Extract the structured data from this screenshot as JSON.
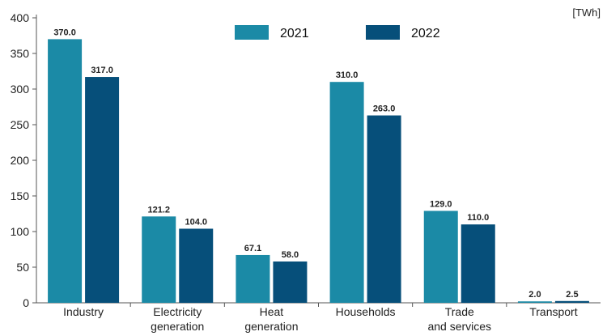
{
  "chart_data": {
    "type": "bar",
    "unit_label": "[TWh]",
    "categories": [
      [
        "Industry"
      ],
      [
        "Electricity",
        "generation"
      ],
      [
        "Heat",
        "generation"
      ],
      [
        "Households"
      ],
      [
        "Trade",
        "and services"
      ],
      [
        "Transport"
      ]
    ],
    "series": [
      {
        "name": "2021",
        "color": "#1b8aa6",
        "values": [
          370.0,
          121.2,
          67.1,
          310.0,
          129.0,
          2.0
        ],
        "labels": [
          "370.0",
          "121.2",
          "67.1",
          "310.0",
          "129.0",
          "2.0"
        ]
      },
      {
        "name": "2022",
        "color": "#064f7a",
        "values": [
          317.0,
          104.0,
          58.0,
          263.0,
          110.0,
          2.5
        ],
        "labels": [
          "317.0",
          "104.0",
          "58.0",
          "263.0",
          "110.0",
          "2.5"
        ]
      }
    ],
    "ylim": [
      0,
      400
    ],
    "yticks": [
      "0",
      "50",
      "100",
      "150",
      "200",
      "250",
      "300",
      "350",
      "400"
    ],
    "grid": false,
    "legend_position": "top-center"
  }
}
